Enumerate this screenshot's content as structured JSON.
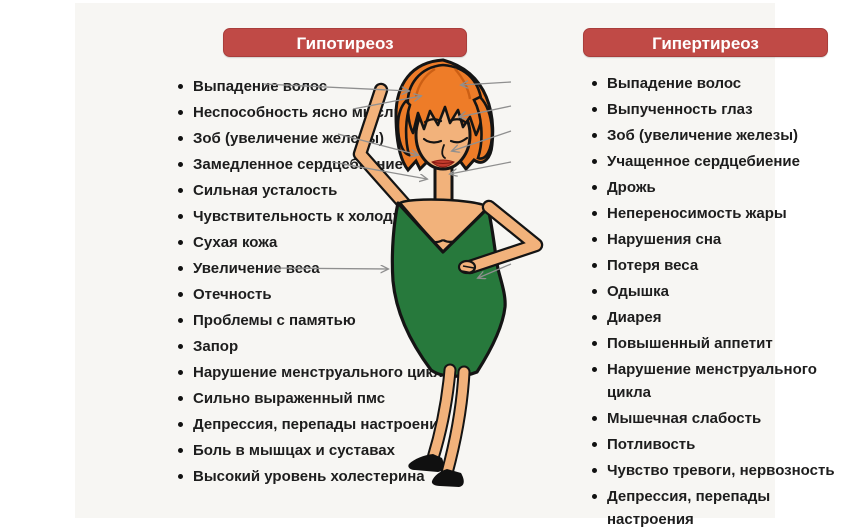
{
  "palette": {
    "banner_red": "#c04a46",
    "banner_border": "#a93e3b",
    "banner_text": "#ffffff",
    "text_dark": "#1d1d1d",
    "panel_bg": "#f7f6f3",
    "arrow_gray": "#8f8f8f",
    "hair_orange": "#ee7c28",
    "skin_tone": "#f2b27b",
    "dress_green": "#27793c",
    "lips_red": "#c23b2d"
  },
  "columns": [
    {
      "id": "hypothyroidism",
      "title": "Гипотиреоз",
      "items": [
        "Выпадение волос",
        "Неспособность ясно мыслить",
        "Зоб (увеличение железы)",
        "Замедленное сердцебиение",
        "Сильная усталость",
        "Чувствительность к холоду",
        "Сухая кожа",
        "Увеличение веса",
        "Отечность",
        "Проблемы с памятью",
        "Запор",
        "Нарушение менструального цикла",
        "Сильно выраженный пмс",
        "Депрессия, перепады настроения",
        "Боль в мышцах и суставах",
        "Высокий уровень холестерина"
      ]
    },
    {
      "id": "hyperthyroidism",
      "title": "Гипертиреоз",
      "items": [
        "Выпадение волос",
        "Выпученность глаз",
        "Зоб (увеличение железы)",
        "Учащенное сердцебиение",
        "Дрожь",
        "Непереносимость жары",
        "Нарушения сна",
        "Потеря веса",
        "Одышка",
        "Диарея",
        "Повышенный аппетит",
        "Нарушение менструального цикла",
        "Мышечная слабость",
        "Потливость",
        "Чувство тревоги, нервозность",
        "Депрессия, перепады настроения"
      ]
    }
  ],
  "figure": {
    "name": "woman-illustration"
  }
}
